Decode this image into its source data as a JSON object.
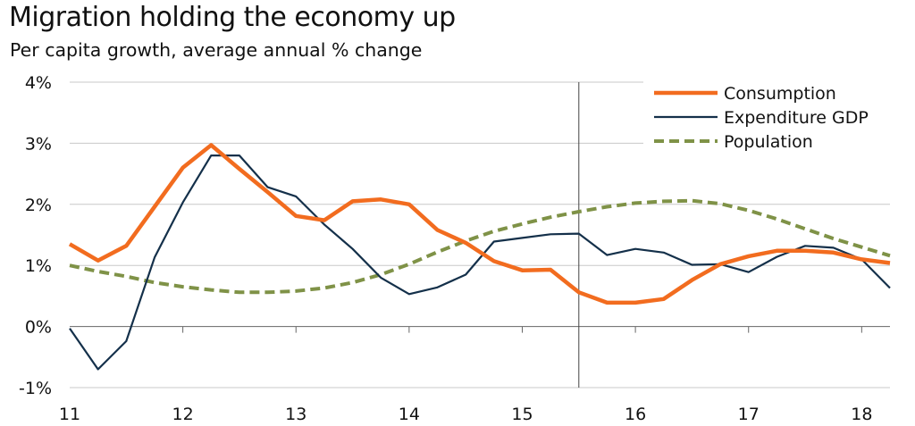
{
  "title": "Migration holding the economy up",
  "subtitle": "Per capita growth, average annual % change",
  "chart_data": {
    "type": "line",
    "title": "Migration holding the economy up",
    "subtitle": "Per capita growth, average annual % change",
    "xlabel": "",
    "ylabel": "",
    "xlim": [
      11,
      18.25
    ],
    "ylim": [
      -1,
      4
    ],
    "x_ticks": [
      "11",
      "12",
      "13",
      "14",
      "15",
      "16",
      "17",
      "18"
    ],
    "y_ticks": [
      "-1%",
      "0%",
      "1%",
      "2%",
      "3%",
      "4%"
    ],
    "grid": "horizontal",
    "legend_position": "top-right",
    "vertical_marker_x": 15.5,
    "x": [
      11,
      11.25,
      11.5,
      11.75,
      12,
      12.25,
      12.5,
      12.75,
      13,
      13.25,
      13.5,
      13.75,
      14,
      14.25,
      14.5,
      14.75,
      15,
      15.25,
      15.5,
      15.75,
      16,
      16.25,
      16.5,
      16.75,
      17,
      17.25,
      17.5,
      17.75,
      18,
      18.25
    ],
    "series": [
      {
        "name": "Consumption",
        "color": "#f26c1f",
        "style": "solid-thick",
        "values": [
          1.35,
          1.08,
          1.32,
          1.96,
          2.6,
          2.97,
          2.58,
          2.2,
          1.81,
          1.74,
          2.05,
          2.08,
          2.0,
          1.58,
          1.37,
          1.07,
          0.92,
          0.93,
          0.56,
          0.39,
          0.39,
          0.45,
          0.76,
          1.02,
          1.15,
          1.24,
          1.24,
          1.21,
          1.1,
          1.04
        ]
      },
      {
        "name": "Expenditure GDP",
        "color": "#14304a",
        "style": "solid-thin",
        "values": [
          -0.03,
          -0.7,
          -0.24,
          1.13,
          2.03,
          2.8,
          2.8,
          2.28,
          2.13,
          1.67,
          1.27,
          0.8,
          0.53,
          0.64,
          0.85,
          1.39,
          1.45,
          1.51,
          1.52,
          1.17,
          1.27,
          1.21,
          1.01,
          1.02,
          0.89,
          1.14,
          1.32,
          1.29,
          1.1,
          0.63
        ]
      },
      {
        "name": "Population",
        "color": "#7f9247",
        "style": "dashed",
        "values": [
          1.0,
          0.9,
          0.82,
          0.72,
          0.65,
          0.6,
          0.56,
          0.56,
          0.58,
          0.63,
          0.72,
          0.85,
          1.02,
          1.22,
          1.4,
          1.56,
          1.68,
          1.79,
          1.88,
          1.96,
          2.02,
          2.05,
          2.06,
          2.01,
          1.9,
          1.76,
          1.6,
          1.44,
          1.3,
          1.16
        ]
      }
    ]
  }
}
